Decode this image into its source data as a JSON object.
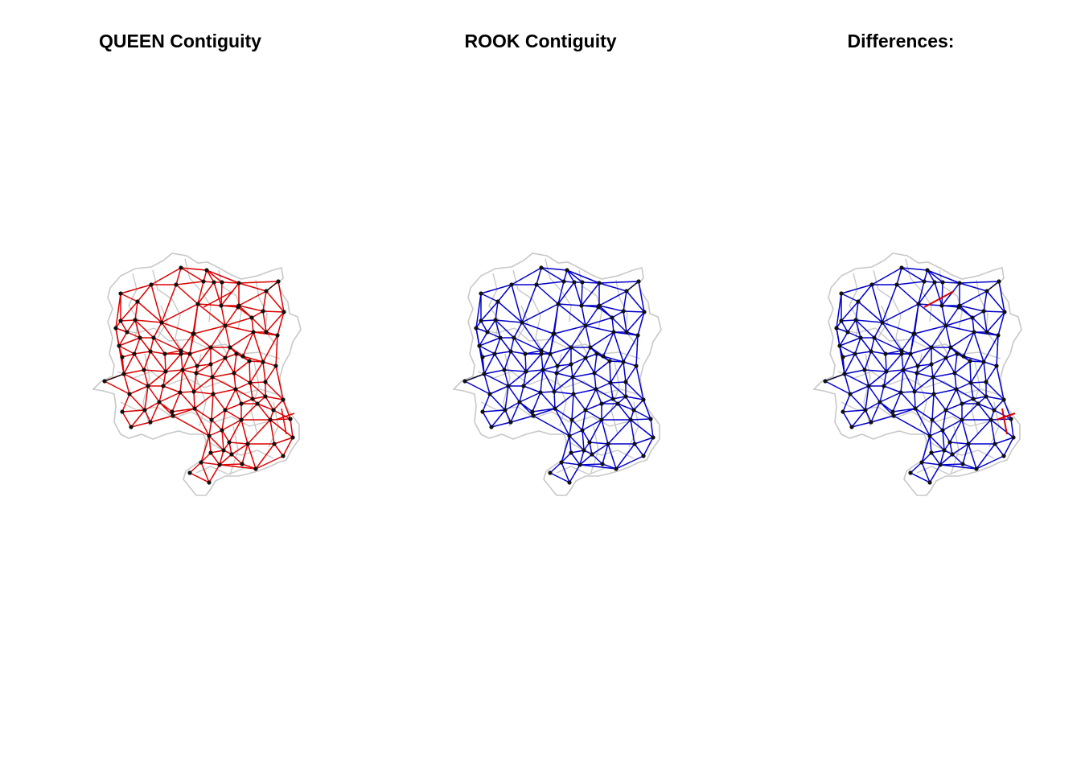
{
  "panels": [
    {
      "id": "queen",
      "title": "QUEEN Contiguity",
      "edge_color": "#dd0000",
      "highlight_color": ""
    },
    {
      "id": "rook",
      "title": "ROOK Contiguity",
      "edge_color": "#0000cc",
      "highlight_color": ""
    },
    {
      "id": "diff",
      "title": "Differences:",
      "edge_color": "#0000cc",
      "highlight_color": "#dd0000"
    }
  ],
  "colors": {
    "boundary": "#c8c8c8",
    "node": "#111111",
    "background": "#ffffff"
  }
}
